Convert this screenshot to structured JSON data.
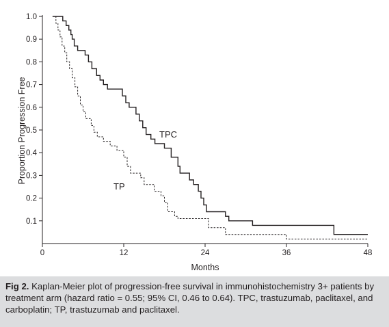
{
  "chart_data": {
    "type": "line",
    "xlabel": "Months",
    "ylabel": "Proportion Progression Free",
    "xlim": [
      0,
      48
    ],
    "ylim": [
      0,
      1.0
    ],
    "x_ticks": [
      "0",
      "12",
      "24",
      "36",
      "48"
    ],
    "y_ticks": [
      "0.1",
      "0.2",
      "0.3",
      "0.4",
      "0.5",
      "0.6",
      "0.7",
      "0.8",
      "0.9",
      "1.0"
    ],
    "grid": false,
    "series": [
      {
        "name": "TPC",
        "style": "solid",
        "color": "#231f20",
        "points": [
          [
            1.5,
            1.0
          ],
          [
            3.0,
            1.0
          ],
          [
            3.0,
            0.98
          ],
          [
            3.5,
            0.98
          ],
          [
            3.5,
            0.96
          ],
          [
            3.9,
            0.96
          ],
          [
            3.9,
            0.94
          ],
          [
            4.2,
            0.94
          ],
          [
            4.2,
            0.92
          ],
          [
            4.4,
            0.92
          ],
          [
            4.4,
            0.9
          ],
          [
            4.7,
            0.9
          ],
          [
            4.7,
            0.87
          ],
          [
            5.2,
            0.87
          ],
          [
            5.2,
            0.85
          ],
          [
            6.3,
            0.85
          ],
          [
            6.3,
            0.83
          ],
          [
            6.8,
            0.83
          ],
          [
            6.8,
            0.8
          ],
          [
            7.3,
            0.8
          ],
          [
            7.3,
            0.77
          ],
          [
            8.0,
            0.77
          ],
          [
            8.0,
            0.74
          ],
          [
            8.5,
            0.74
          ],
          [
            8.5,
            0.72
          ],
          [
            9.0,
            0.72
          ],
          [
            9.0,
            0.7
          ],
          [
            9.6,
            0.7
          ],
          [
            9.6,
            0.68
          ],
          [
            11.8,
            0.68
          ],
          [
            11.8,
            0.65
          ],
          [
            12.3,
            0.65
          ],
          [
            12.3,
            0.62
          ],
          [
            12.8,
            0.62
          ],
          [
            12.8,
            0.6
          ],
          [
            13.8,
            0.6
          ],
          [
            13.8,
            0.57
          ],
          [
            14.3,
            0.57
          ],
          [
            14.3,
            0.54
          ],
          [
            14.8,
            0.54
          ],
          [
            14.8,
            0.51
          ],
          [
            15.3,
            0.51
          ],
          [
            15.3,
            0.48
          ],
          [
            16.0,
            0.48
          ],
          [
            16.0,
            0.46
          ],
          [
            16.6,
            0.46
          ],
          [
            16.6,
            0.44
          ],
          [
            18.0,
            0.44
          ],
          [
            18.0,
            0.42
          ],
          [
            19.0,
            0.42
          ],
          [
            19.0,
            0.38
          ],
          [
            20.0,
            0.38
          ],
          [
            20.0,
            0.34
          ],
          [
            20.3,
            0.34
          ],
          [
            20.3,
            0.31
          ],
          [
            21.7,
            0.31
          ],
          [
            21.7,
            0.28
          ],
          [
            22.3,
            0.28
          ],
          [
            22.3,
            0.26
          ],
          [
            23.0,
            0.26
          ],
          [
            23.0,
            0.23
          ],
          [
            23.4,
            0.23
          ],
          [
            23.4,
            0.2
          ],
          [
            23.8,
            0.2
          ],
          [
            23.8,
            0.17
          ],
          [
            24.2,
            0.17
          ],
          [
            24.2,
            0.14
          ],
          [
            27.0,
            0.14
          ],
          [
            27.0,
            0.12
          ],
          [
            27.5,
            0.12
          ],
          [
            27.5,
            0.1
          ],
          [
            31.0,
            0.1
          ],
          [
            31.0,
            0.08
          ],
          [
            43.0,
            0.08
          ],
          [
            43.0,
            0.04
          ],
          [
            48.0,
            0.04
          ]
        ]
      },
      {
        "name": "TP",
        "style": "dashed",
        "color": "#231f20",
        "points": [
          [
            1.5,
            1.0
          ],
          [
            2.0,
            1.0
          ],
          [
            2.0,
            0.97
          ],
          [
            2.3,
            0.97
          ],
          [
            2.3,
            0.94
          ],
          [
            2.6,
            0.94
          ],
          [
            2.6,
            0.91
          ],
          [
            2.9,
            0.91
          ],
          [
            2.9,
            0.87
          ],
          [
            3.3,
            0.87
          ],
          [
            3.3,
            0.84
          ],
          [
            3.6,
            0.84
          ],
          [
            3.6,
            0.8
          ],
          [
            4.0,
            0.8
          ],
          [
            4.0,
            0.77
          ],
          [
            4.4,
            0.77
          ],
          [
            4.4,
            0.73
          ],
          [
            4.8,
            0.73
          ],
          [
            4.8,
            0.69
          ],
          [
            5.2,
            0.69
          ],
          [
            5.2,
            0.65
          ],
          [
            5.6,
            0.65
          ],
          [
            5.6,
            0.61
          ],
          [
            6.0,
            0.61
          ],
          [
            6.0,
            0.58
          ],
          [
            6.4,
            0.58
          ],
          [
            6.4,
            0.55
          ],
          [
            7.2,
            0.55
          ],
          [
            7.2,
            0.52
          ],
          [
            7.6,
            0.52
          ],
          [
            7.6,
            0.49
          ],
          [
            8.1,
            0.49
          ],
          [
            8.1,
            0.47
          ],
          [
            9.0,
            0.47
          ],
          [
            9.0,
            0.45
          ],
          [
            10.0,
            0.45
          ],
          [
            10.0,
            0.43
          ],
          [
            11.0,
            0.43
          ],
          [
            11.0,
            0.41
          ],
          [
            12.0,
            0.41
          ],
          [
            12.0,
            0.38
          ],
          [
            12.5,
            0.38
          ],
          [
            12.5,
            0.34
          ],
          [
            13.0,
            0.34
          ],
          [
            13.0,
            0.31
          ],
          [
            14.5,
            0.31
          ],
          [
            14.5,
            0.29
          ],
          [
            15.0,
            0.29
          ],
          [
            15.0,
            0.26
          ],
          [
            16.5,
            0.26
          ],
          [
            16.5,
            0.23
          ],
          [
            17.5,
            0.23
          ],
          [
            17.5,
            0.21
          ],
          [
            18.0,
            0.21
          ],
          [
            18.0,
            0.18
          ],
          [
            18.5,
            0.18
          ],
          [
            18.5,
            0.14
          ],
          [
            19.5,
            0.14
          ],
          [
            19.5,
            0.12
          ],
          [
            20.0,
            0.12
          ],
          [
            20.0,
            0.11
          ],
          [
            24.5,
            0.11
          ],
          [
            24.5,
            0.07
          ],
          [
            27.0,
            0.07
          ],
          [
            27.0,
            0.04
          ],
          [
            36.0,
            0.04
          ],
          [
            36.0,
            0.02
          ],
          [
            48.0,
            0.02
          ]
        ]
      }
    ]
  },
  "caption": {
    "label": "Fig 2.",
    "text": "Kaplan-Meier plot of progression-free survival in immunohistochemistry 3+ patients by treatment arm (hazard ratio = 0.55; 95% CI, 0.46 to 0.64). TPC, trastuzumab, paclitaxel, and carboplatin; TP, trastuzumab and paclitaxel."
  }
}
